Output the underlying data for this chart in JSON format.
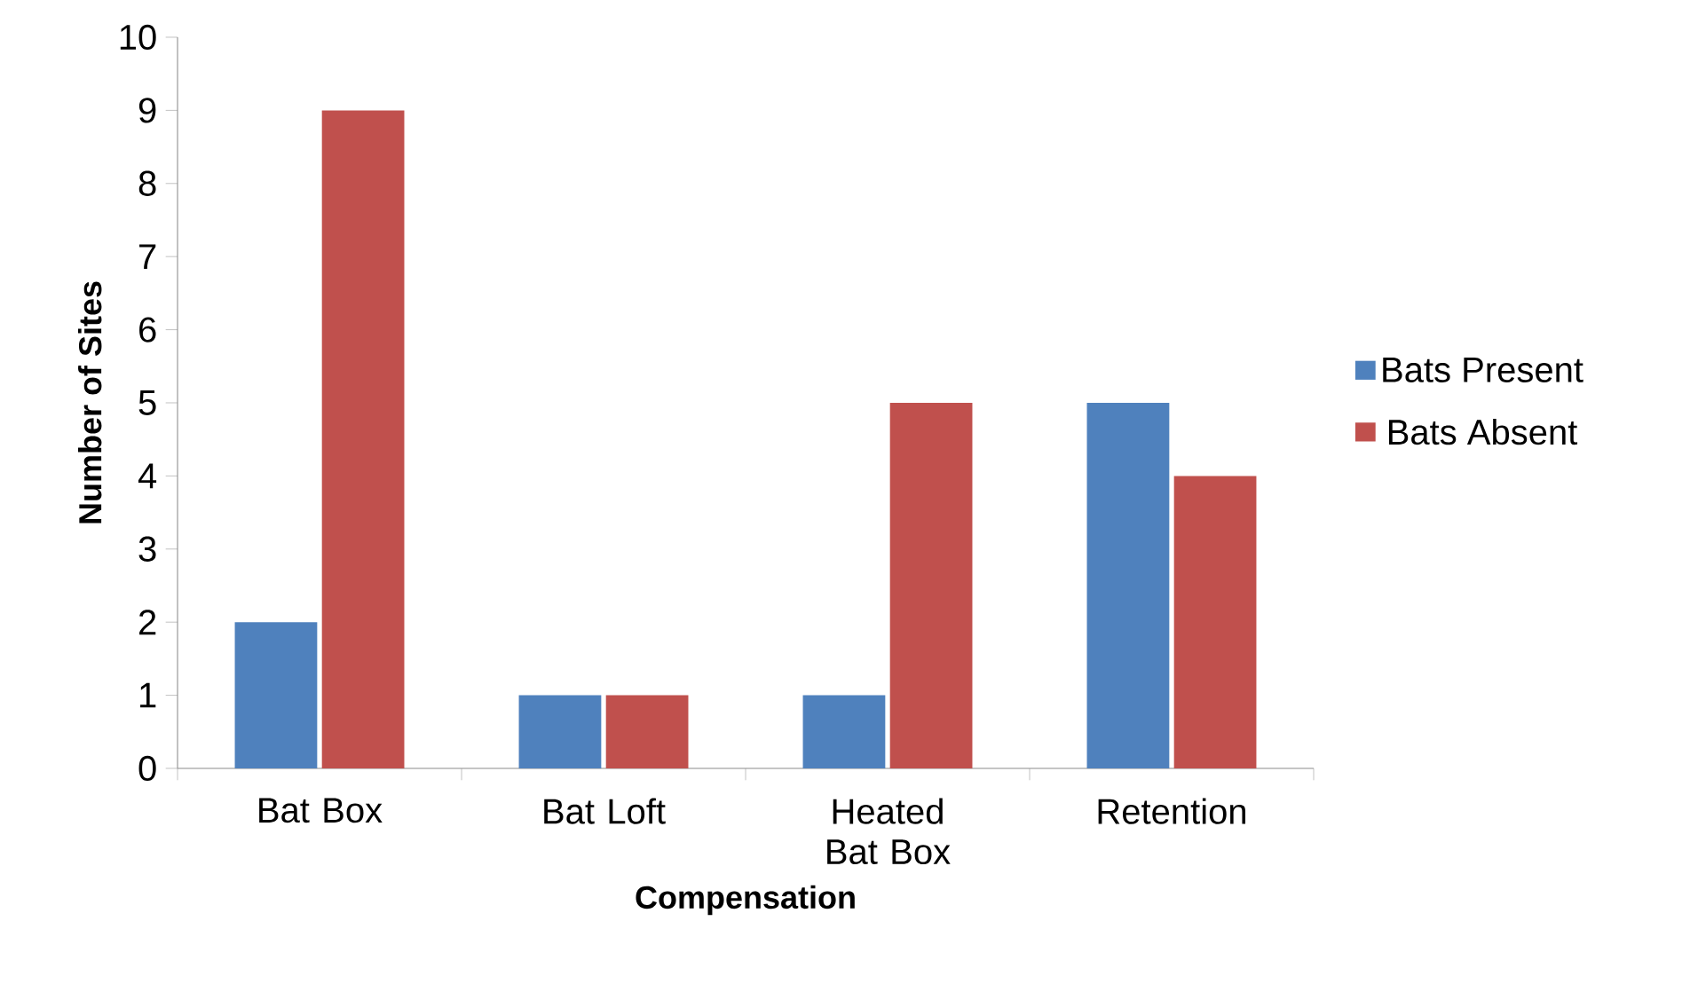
{
  "chart_data": {
    "type": "bar",
    "xlabel": "Compensation",
    "ylabel": "Number of Sites",
    "categories": [
      "Bat Box",
      "Bat Loft",
      "Heated Bat Box",
      "Retention"
    ],
    "series": [
      {
        "name": "Bats Present",
        "color": "#4f81bd",
        "values": [
          2,
          1,
          1,
          5
        ]
      },
      {
        "name": "Bats Absent",
        "color": "#c0504d",
        "values": [
          9,
          1,
          5,
          4
        ]
      }
    ],
    "ylim": [
      0,
      10
    ],
    "yticks": [
      0,
      1,
      2,
      3,
      4,
      5,
      6,
      7,
      8,
      9,
      10
    ],
    "grid": false,
    "legend": "right"
  }
}
